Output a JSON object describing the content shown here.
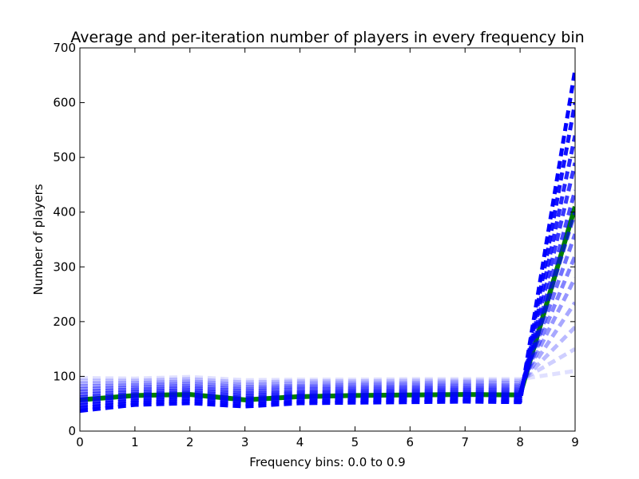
{
  "chart_data": {
    "type": "line",
    "title": "Average and per-iteration number of players in every frequency bin",
    "xlabel": "Frequency bins: 0.0 to 0.9",
    "ylabel": "Number of players",
    "xlim": [
      0,
      9
    ],
    "ylim": [
      0,
      700
    ],
    "x_ticks": [
      "0",
      "1",
      "2",
      "3",
      "4",
      "5",
      "6",
      "7",
      "8",
      "9"
    ],
    "y_ticks": [
      "0",
      "100",
      "200",
      "300",
      "400",
      "500",
      "600",
      "700"
    ],
    "grid": false,
    "colors": {
      "average": "#007f00",
      "iterations": "#0000ff"
    },
    "x": [
      0,
      1,
      2,
      3,
      4,
      5,
      6,
      7,
      8,
      9
    ],
    "series": [
      {
        "name": "",
        "style": "average",
        "values": [
          57,
          65,
          67,
          57,
          63,
          65,
          66,
          67,
          66,
          410
        ]
      },
      {
        "name": "",
        "style": "iteration",
        "values": [
          97,
          96,
          99,
          93,
          94,
          94,
          95,
          95,
          95,
          110
        ]
      },
      {
        "name": "",
        "style": "iteration",
        "values": [
          92,
          92,
          95,
          89,
          91,
          91,
          92,
          92,
          92,
          150
        ]
      },
      {
        "name": "",
        "style": "iteration",
        "values": [
          87,
          88,
          91,
          85,
          87,
          87,
          88,
          89,
          88,
          190
        ]
      },
      {
        "name": "",
        "style": "iteration",
        "values": [
          82,
          84,
          87,
          81,
          83,
          84,
          85,
          85,
          84,
          235
        ]
      },
      {
        "name": "",
        "style": "iteration",
        "values": [
          77,
          80,
          83,
          77,
          80,
          80,
          81,
          82,
          81,
          280
        ]
      },
      {
        "name": "",
        "style": "iteration",
        "values": [
          72,
          76,
          79,
          73,
          76,
          77,
          78,
          78,
          77,
          320
        ]
      },
      {
        "name": "",
        "style": "iteration",
        "values": [
          67,
          72,
          75,
          69,
          72,
          73,
          74,
          75,
          74,
          360
        ]
      },
      {
        "name": "",
        "style": "iteration",
        "values": [
          62,
          68,
          71,
          65,
          69,
          70,
          71,
          71,
          70,
          400
        ]
      },
      {
        "name": "",
        "style": "iteration",
        "values": [
          57,
          64,
          67,
          61,
          65,
          66,
          67,
          68,
          67,
          440
        ]
      },
      {
        "name": "",
        "style": "iteration",
        "values": [
          52,
          60,
          63,
          57,
          62,
          63,
          64,
          64,
          63,
          490
        ]
      },
      {
        "name": "",
        "style": "iteration",
        "values": [
          47,
          56,
          59,
          53,
          58,
          59,
          60,
          61,
          60,
          540
        ]
      },
      {
        "name": "",
        "style": "iteration",
        "values": [
          42,
          52,
          55,
          49,
          54,
          56,
          57,
          57,
          56,
          600
        ]
      },
      {
        "name": "",
        "style": "iteration",
        "values": [
          37,
          48,
          51,
          45,
          51,
          52,
          53,
          54,
          53,
          660
        ]
      }
    ]
  }
}
